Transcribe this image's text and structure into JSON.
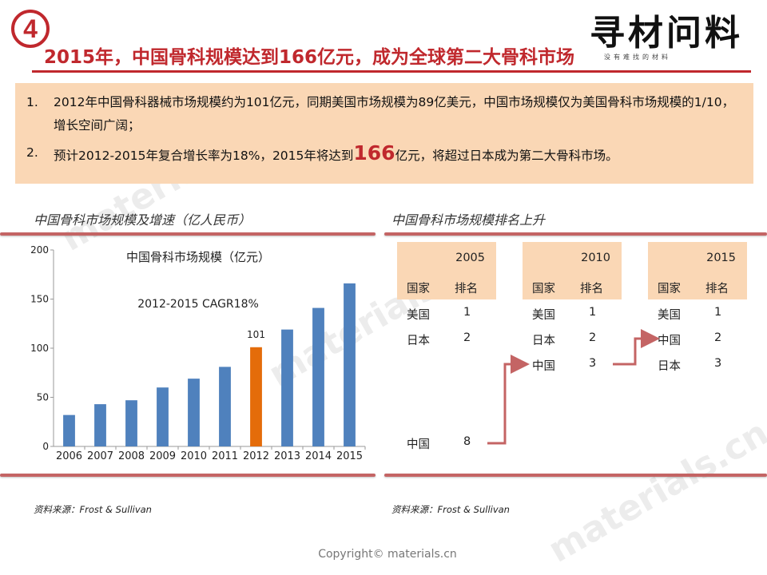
{
  "header": {
    "badge": "4",
    "title": "2015年，中国骨科规模达到166亿元，成为全球第二大骨科市场",
    "logo_main": "寻材问料",
    "logo_sub": "没有难找的材料"
  },
  "summary": {
    "item1_idx": "1.",
    "item1_text": "2012年中国骨科器械市场规模约为101亿元，同期美国市场规模为89亿美元，中国市场规模仅为美国骨科市场规模的1/10，增长空间广阔；",
    "item2_idx": "2.",
    "item2_pre": "预计2012-2015年复合增长率为18%，2015年将达到",
    "item2_big": "166",
    "item2_post": "亿元，将超过日本成为第二大骨科市场。"
  },
  "left_section": {
    "title": "中国骨科市场规模及增速（亿人民币）",
    "source": "资料来源：Frost & Sullivan"
  },
  "right_section": {
    "title": "中国骨科市场规模排名上升",
    "source": "资料来源：Frost & Sullivan"
  },
  "chart_data": {
    "type": "bar",
    "title": "中国骨科市场规模（亿元）",
    "annotation": "2012-2015 CAGR18%",
    "categories": [
      "2006",
      "2007",
      "2008",
      "2009",
      "2010",
      "2011",
      "2012",
      "2013",
      "2014",
      "2015"
    ],
    "values": [
      32,
      43,
      47,
      60,
      69,
      81,
      101,
      119,
      141,
      166
    ],
    "highlight_index": 6,
    "highlight_label": "101",
    "bar_color": "#4f81bd",
    "highlight_color": "#e46c0a",
    "ylim": [
      0,
      200
    ],
    "yticks": [
      0,
      50,
      100,
      150,
      200
    ],
    "xlabel": "",
    "ylabel": ""
  },
  "rankings": {
    "col_country": "国家",
    "col_rank": "排名",
    "tables": [
      {
        "year": "2005",
        "rows": [
          {
            "country": "美国",
            "rank": "1"
          },
          {
            "country": "日本",
            "rank": "2"
          },
          {
            "country": "中国",
            "rank": "8"
          }
        ]
      },
      {
        "year": "2010",
        "rows": [
          {
            "country": "美国",
            "rank": "1"
          },
          {
            "country": "日本",
            "rank": "2"
          },
          {
            "country": "中国",
            "rank": "3"
          }
        ]
      },
      {
        "year": "2015",
        "rows": [
          {
            "country": "美国",
            "rank": "1"
          },
          {
            "country": "中国",
            "rank": "2"
          },
          {
            "country": "日本",
            "rank": "3"
          }
        ]
      }
    ]
  },
  "watermark": "materials.cn",
  "copyright": "Copyright© materials.cn",
  "colors": {
    "accent": "#c0282d",
    "highlight_box": "#fad7b5"
  }
}
